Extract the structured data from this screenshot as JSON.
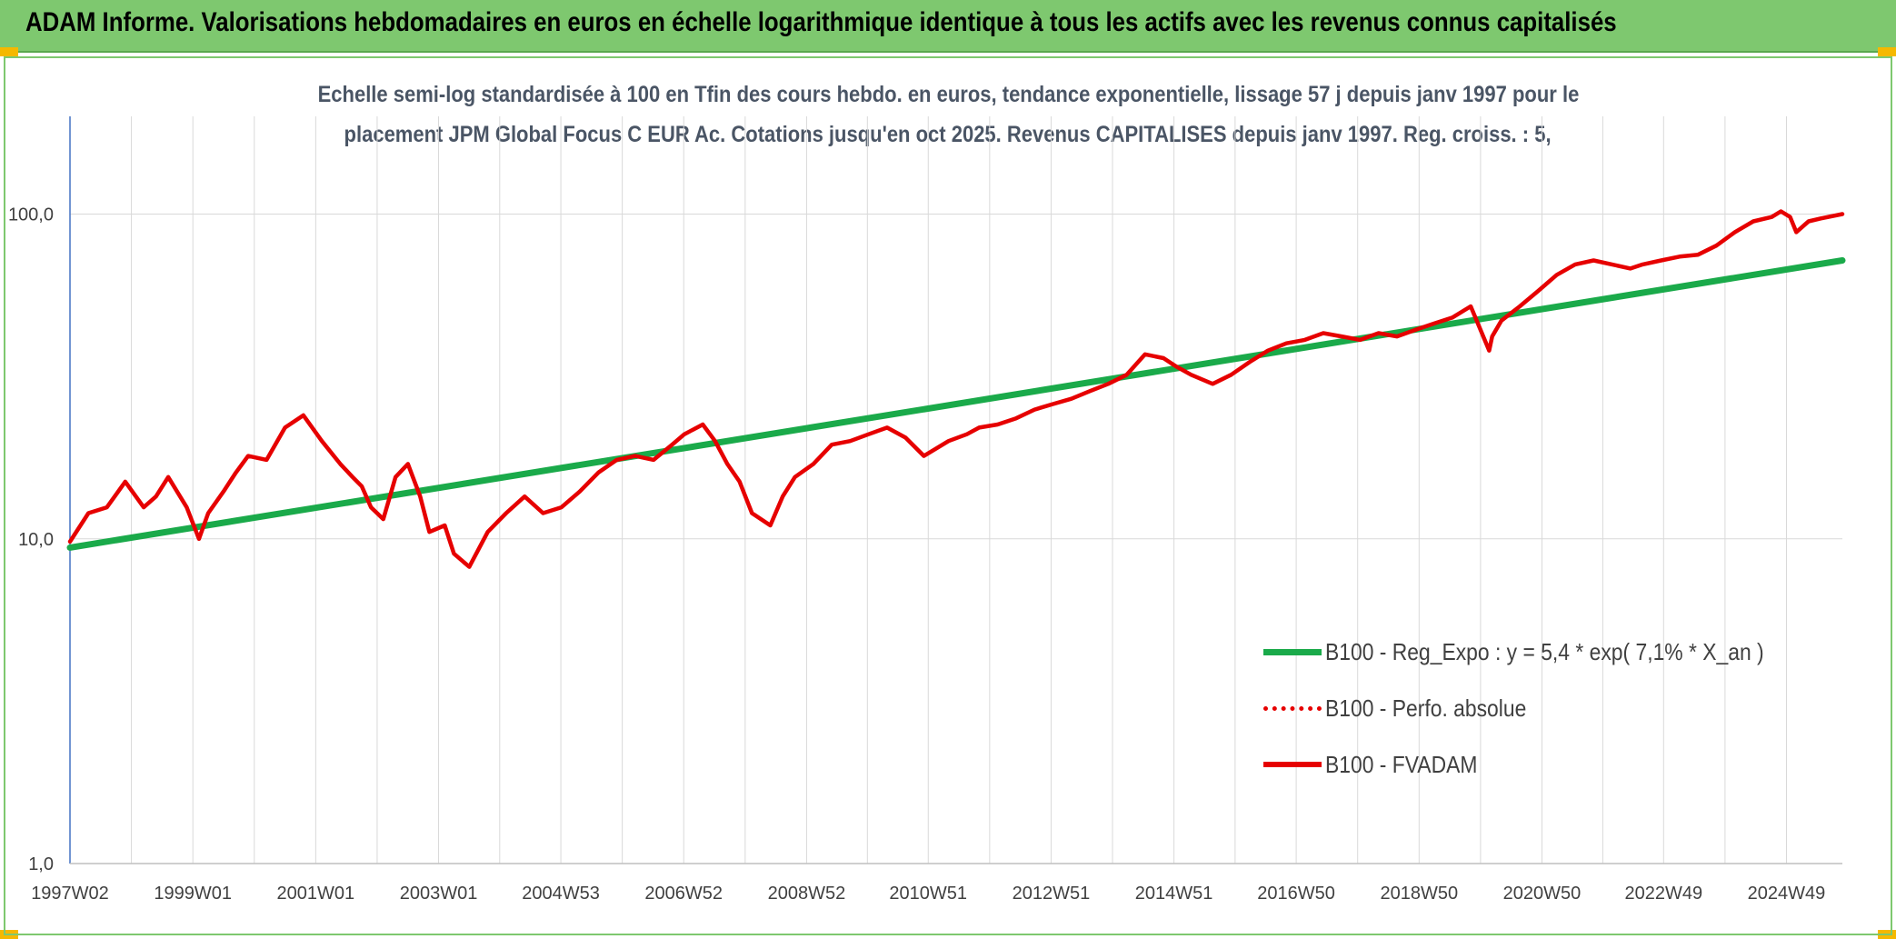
{
  "header": {
    "title": "ADAM Informe. Valorisations hebdomadaires en euros en échelle logarithmique identique à tous les actifs avec les revenus connus capitalisés"
  },
  "subtitle": {
    "line1": "Echelle semi-log standardisée à 100 en Tfin des cours hebdo. en euros, tendance exponentielle, lissage 57 j depuis janv 1997 pour le",
    "line2": "placement JPM Global Focus C EUR Ac. Cotations jusqu'en oct 2025. Revenus CAPITALISES depuis janv 1997. Reg. croiss. : 5,"
  },
  "colors": {
    "header_bg": "#7ec86f",
    "regression": "#1aaa4a",
    "fvadam": "#e60000",
    "gridline": "#d9d9d9",
    "corner_accent": "#f5b800"
  },
  "chart_data": {
    "type": "line",
    "yscale": "log",
    "ylim": [
      1,
      200
    ],
    "xlim": [
      1997.0,
      2025.85
    ],
    "y_ticks": [
      {
        "value": 1,
        "label": "1,0"
      },
      {
        "value": 10,
        "label": "10,0"
      },
      {
        "value": 100,
        "label": "100,0"
      }
    ],
    "x_ticks": [
      {
        "value": 1997.0,
        "label": "1997W02"
      },
      {
        "value": 1999.0,
        "label": "1999W01"
      },
      {
        "value": 2001.0,
        "label": "2001W01"
      },
      {
        "value": 2003.0,
        "label": "2003W01"
      },
      {
        "value": 2004.99,
        "label": "2004W53"
      },
      {
        "value": 2006.99,
        "label": "2006W52"
      },
      {
        "value": 2008.99,
        "label": "2008W52"
      },
      {
        "value": 2010.97,
        "label": "2010W51"
      },
      {
        "value": 2012.97,
        "label": "2012W51"
      },
      {
        "value": 2014.97,
        "label": "2014W51"
      },
      {
        "value": 2016.96,
        "label": "2016W50"
      },
      {
        "value": 2018.96,
        "label": "2018W50"
      },
      {
        "value": 2020.96,
        "label": "2020W50"
      },
      {
        "value": 2022.94,
        "label": "2022W49"
      },
      {
        "value": 2024.94,
        "label": "2024W49"
      }
    ],
    "series": [
      {
        "name": "B100 - Reg_Expo : y = 5,4 * exp( 7,1% *  X_an )",
        "style": "solid-thick",
        "x": [
          1997.0,
          2025.85
        ],
        "y": [
          9.4,
          72
        ]
      },
      {
        "name": "B100 - Perfo. absolue",
        "style": "dotted",
        "x": [],
        "y": []
      },
      {
        "name": "B100 - FVADAM",
        "style": "solid",
        "x": [
          1997.0,
          1997.3,
          1997.6,
          1997.9,
          1998.2,
          1998.4,
          1998.6,
          1998.9,
          1999.1,
          1999.25,
          1999.5,
          1999.7,
          1999.9,
          2000.2,
          2000.5,
          2000.8,
          2001.1,
          2001.4,
          2001.6,
          2001.75,
          2001.9,
          2002.1,
          2002.3,
          2002.5,
          2002.7,
          2002.85,
          2003.1,
          2003.25,
          2003.5,
          2003.8,
          2004.1,
          2004.4,
          2004.7,
          2005.0,
          2005.3,
          2005.6,
          2005.9,
          2006.2,
          2006.5,
          2006.8,
          2007.0,
          2007.3,
          2007.5,
          2007.7,
          2007.9,
          2008.1,
          2008.4,
          2008.6,
          2008.8,
          2009.1,
          2009.4,
          2009.7,
          2010.0,
          2010.3,
          2010.6,
          2010.9,
          2011.3,
          2011.6,
          2011.8,
          2012.1,
          2012.4,
          2012.7,
          2013.0,
          2013.3,
          2013.6,
          2013.9,
          2014.2,
          2014.5,
          2014.8,
          2015.0,
          2015.25,
          2015.6,
          2015.9,
          2016.2,
          2016.5,
          2016.8,
          2017.1,
          2017.4,
          2017.7,
          2018.0,
          2018.3,
          2018.6,
          2018.9,
          2019.2,
          2019.5,
          2019.8,
          2020.1,
          2020.15,
          2020.3,
          2020.6,
          2020.9,
          2021.2,
          2021.5,
          2021.8,
          2022.1,
          2022.4,
          2022.6,
          2022.9,
          2023.2,
          2023.5,
          2023.8,
          2024.1,
          2024.4,
          2024.7,
          2024.85,
          2025.0,
          2025.1,
          2025.3,
          2025.5,
          2025.85
        ],
        "y": [
          9.8,
          12.0,
          12.5,
          15.0,
          12.5,
          13.5,
          15.5,
          12.5,
          10.0,
          12.0,
          14.0,
          16.0,
          18.0,
          17.5,
          22.0,
          24.0,
          20.0,
          17.0,
          15.5,
          14.5,
          12.5,
          11.5,
          15.5,
          17.0,
          13.5,
          10.5,
          11.0,
          9.0,
          8.2,
          10.5,
          12.0,
          13.5,
          12.0,
          12.5,
          14.0,
          16.0,
          17.5,
          18.0,
          17.5,
          19.5,
          21.0,
          22.5,
          20.0,
          17.0,
          15.0,
          12.0,
          11.0,
          13.5,
          15.5,
          17.0,
          19.5,
          20.0,
          21.0,
          22.0,
          20.5,
          18.0,
          20.0,
          21.0,
          22.0,
          22.5,
          23.5,
          25.0,
          26.0,
          27.0,
          28.5,
          30.0,
          32.0,
          37.0,
          36.0,
          34.0,
          32.0,
          30.0,
          32.0,
          35.0,
          38.0,
          40.0,
          41.0,
          43.0,
          42.0,
          41.0,
          43.0,
          42.0,
          44.0,
          46.0,
          48.0,
          52.0,
          38.0,
          42.0,
          47.0,
          52.0,
          58.0,
          65.0,
          70.0,
          72.0,
          70.0,
          68.0,
          70.0,
          72.0,
          74.0,
          75.0,
          80.0,
          88.0,
          95.0,
          98.0,
          102.0,
          98.0,
          88.0,
          95.0,
          97.0,
          100.0
        ]
      }
    ],
    "legend": "bottom-right"
  }
}
